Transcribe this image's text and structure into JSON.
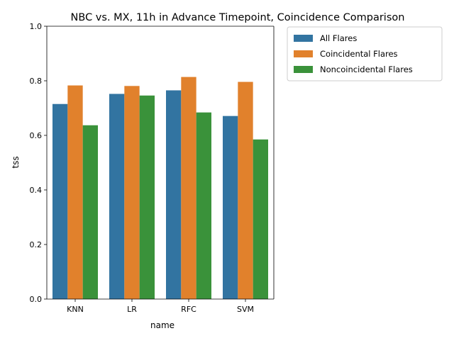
{
  "chart_data": {
    "type": "bar",
    "title": "NBC vs. MX, 11h in Advance Timepoint, Coincidence Comparison",
    "xlabel": "name",
    "ylabel": "tss",
    "categories": [
      "KNN",
      "LR",
      "RFC",
      "SVM"
    ],
    "ylim": [
      0,
      1
    ],
    "yticks": [
      "0.0",
      "0.2",
      "0.4",
      "0.6",
      "0.8",
      "1.0"
    ],
    "grid": false,
    "legend_placement": "outside-top-right",
    "series": [
      {
        "name": "All Flares",
        "color": "#3274a1",
        "values": [
          0.715,
          0.752,
          0.765,
          0.671
        ]
      },
      {
        "name": "Coincidental Flares",
        "color": "#e1812c",
        "values": [
          0.783,
          0.781,
          0.814,
          0.796
        ]
      },
      {
        "name": "Noncoincidental Flares",
        "color": "#3a923a",
        "values": [
          0.637,
          0.746,
          0.684,
          0.585
        ]
      }
    ]
  }
}
